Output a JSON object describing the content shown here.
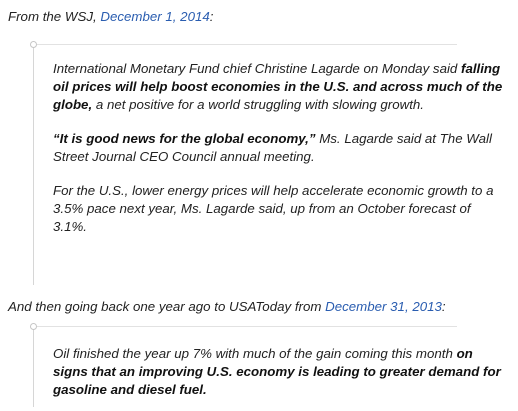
{
  "intro1": {
    "prefix": "From the WSJ, ",
    "link_text": "December 1, 2014",
    "suffix": ":"
  },
  "quote1": {
    "para1": {
      "text_a": "International Monetary Fund chief Christine Lagarde on Monday said ",
      "bold": "falling oil prices will help boost economies in the U.S. and across much of the globe,",
      "text_b": " a net positive for a world struggling with slowing growth."
    },
    "para2": {
      "bold": "“It is good news for the global economy,”",
      "text": " Ms. Lagarde said at The Wall Street Journal CEO Council annual meeting."
    },
    "para3": {
      "text": "For the U.S., lower energy prices will help accelerate economic growth to a 3.5% pace next year, Ms. Lagarde said, up from an October forecast of 3.1%."
    }
  },
  "intro2": {
    "prefix": "And then going back one year ago to USAToday from ",
    "link_text": "December 31, 2013",
    "suffix": ":"
  },
  "quote2": {
    "para1": {
      "text": "Oil finished the year up 7% with much of the gain coming this month ",
      "bold": "on signs that an improving U.S. economy is leading to greater demand for gasoline and diesel fuel."
    }
  },
  "colors": {
    "link": "#2a5db0",
    "text": "#222222",
    "quote_border": "#d6d6d6"
  }
}
